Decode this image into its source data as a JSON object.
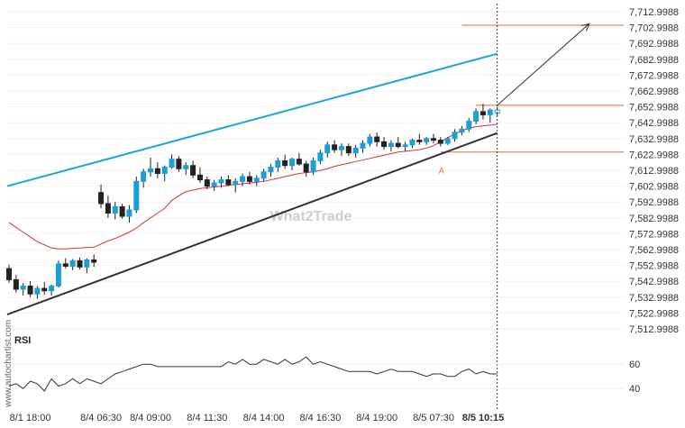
{
  "watermark": "What2Trade",
  "credit": "www.autochartist.com",
  "chart_data": {
    "type": "candlestick",
    "y_ticks": [
      "7,712.9988",
      "7,702.9988",
      "7,692.9988",
      "7,682.9988",
      "7,672.9988",
      "7,662.9988",
      "7,652.9988",
      "7,642.9988",
      "7,632.9988",
      "7,622.9988",
      "7,612.9988",
      "7,602.9988",
      "7,592.9988",
      "7,582.9988",
      "7,572.9988",
      "7,562.9988",
      "7,552.9988",
      "7,542.9988",
      "7,532.9988",
      "7,522.9988",
      "7,512.9988"
    ],
    "ylim": [
      7508.9988,
      7716.9988
    ],
    "x_labels": [
      "8/1 18:00",
      "8/4 06:30",
      "8/4 09:00",
      "8/4 11:30",
      "8/4 14:00",
      "8/4 16:30",
      "8/4 19:00",
      "8/5 07:30",
      "8/5 10:15"
    ],
    "x_label_index": [
      3,
      13,
      20,
      28,
      36,
      44,
      52,
      60,
      67
    ],
    "current_label": "8/5 10:15",
    "bar_count": 70,
    "candles": [
      {
        "o": 7551.0,
        "h": 7553.5,
        "l": 7542.0,
        "c": 7544.0
      },
      {
        "o": 7544.0,
        "h": 7547.0,
        "l": 7536.0,
        "c": 7538.0
      },
      {
        "o": 7538.0,
        "h": 7542.0,
        "l": 7534.0,
        "c": 7540.0
      },
      {
        "o": 7540.0,
        "h": 7543.0,
        "l": 7533.0,
        "c": 7535.0
      },
      {
        "o": 7535.0,
        "h": 7540.0,
        "l": 7532.0,
        "c": 7538.5
      },
      {
        "o": 7538.5,
        "h": 7542.5,
        "l": 7534.5,
        "c": 7537.0
      },
      {
        "o": 7537.0,
        "h": 7541.0,
        "l": 7534.0,
        "c": 7540.0
      },
      {
        "o": 7540.0,
        "h": 7556.0,
        "l": 7539.0,
        "c": 7554.0
      },
      {
        "o": 7554.0,
        "h": 7557.5,
        "l": 7551.0,
        "c": 7552.5
      },
      {
        "o": 7552.5,
        "h": 7557.0,
        "l": 7550.0,
        "c": 7556.0
      },
      {
        "o": 7556.0,
        "h": 7558.0,
        "l": 7550.5,
        "c": 7552.0
      },
      {
        "o": 7552.0,
        "h": 7557.5,
        "l": 7548.0,
        "c": 7556.5
      },
      {
        "o": 7556.5,
        "h": 7560.0,
        "l": 7552.0,
        "c": 7555.0
      },
      {
        "o": 7599.0,
        "h": 7604.0,
        "l": 7589.0,
        "c": 7592.0
      },
      {
        "o": 7592.0,
        "h": 7597.0,
        "l": 7583.0,
        "c": 7586.0
      },
      {
        "o": 7586.0,
        "h": 7593.0,
        "l": 7582.0,
        "c": 7590.0
      },
      {
        "o": 7590.0,
        "h": 7592.0,
        "l": 7582.5,
        "c": 7584.0
      },
      {
        "o": 7584.0,
        "h": 7591.0,
        "l": 7580.0,
        "c": 7588.0
      },
      {
        "o": 7588.0,
        "h": 7609.0,
        "l": 7586.0,
        "c": 7606.0
      },
      {
        "o": 7606.0,
        "h": 7614.0,
        "l": 7602.0,
        "c": 7612.0
      },
      {
        "o": 7612.0,
        "h": 7621.0,
        "l": 7609.0,
        "c": 7614.0
      },
      {
        "o": 7614.0,
        "h": 7618.0,
        "l": 7608.0,
        "c": 7611.0
      },
      {
        "o": 7611.0,
        "h": 7616.0,
        "l": 7606.0,
        "c": 7615.0
      },
      {
        "o": 7615.0,
        "h": 7623.0,
        "l": 7614.0,
        "c": 7620.0
      },
      {
        "o": 7620.0,
        "h": 7622.0,
        "l": 7612.0,
        "c": 7614.0
      },
      {
        "o": 7614.0,
        "h": 7618.0,
        "l": 7610.0,
        "c": 7616.0
      },
      {
        "o": 7616.0,
        "h": 7619.0,
        "l": 7608.0,
        "c": 7610.0
      },
      {
        "o": 7610.0,
        "h": 7615.0,
        "l": 7605.0,
        "c": 7607.0
      },
      {
        "o": 7607.0,
        "h": 7609.0,
        "l": 7601.0,
        "c": 7603.0
      },
      {
        "o": 7603.0,
        "h": 7607.0,
        "l": 7600.0,
        "c": 7605.0
      },
      {
        "o": 7605.0,
        "h": 7609.0,
        "l": 7602.0,
        "c": 7607.0
      },
      {
        "o": 7607.0,
        "h": 7610.0,
        "l": 7603.0,
        "c": 7604.0
      },
      {
        "o": 7604.0,
        "h": 7608.0,
        "l": 7599.0,
        "c": 7606.0
      },
      {
        "o": 7606.0,
        "h": 7611.0,
        "l": 7603.0,
        "c": 7609.0
      },
      {
        "o": 7609.0,
        "h": 7612.0,
        "l": 7604.0,
        "c": 7606.0
      },
      {
        "o": 7606.0,
        "h": 7610.0,
        "l": 7603.0,
        "c": 7608.0
      },
      {
        "o": 7608.0,
        "h": 7614.0,
        "l": 7606.0,
        "c": 7612.0
      },
      {
        "o": 7612.0,
        "h": 7617.0,
        "l": 7609.0,
        "c": 7615.0
      },
      {
        "o": 7615.0,
        "h": 7621.0,
        "l": 7612.0,
        "c": 7619.0
      },
      {
        "o": 7619.0,
        "h": 7623.0,
        "l": 7614.0,
        "c": 7616.0
      },
      {
        "o": 7616.0,
        "h": 7621.0,
        "l": 7613.0,
        "c": 7620.0
      },
      {
        "o": 7620.0,
        "h": 7624.0,
        "l": 7616.0,
        "c": 7617.0
      },
      {
        "o": 7617.0,
        "h": 7619.0,
        "l": 7609.0,
        "c": 7612.0
      },
      {
        "o": 7612.0,
        "h": 7621.0,
        "l": 7610.0,
        "c": 7619.0
      },
      {
        "o": 7619.0,
        "h": 7626.0,
        "l": 7617.0,
        "c": 7624.0
      },
      {
        "o": 7624.0,
        "h": 7631.0,
        "l": 7621.0,
        "c": 7629.0
      },
      {
        "o": 7629.0,
        "h": 7632.0,
        "l": 7624.0,
        "c": 7626.0
      },
      {
        "o": 7626.0,
        "h": 7630.0,
        "l": 7622.0,
        "c": 7628.0
      },
      {
        "o": 7628.0,
        "h": 7630.0,
        "l": 7622.0,
        "c": 7624.0
      },
      {
        "o": 7624.0,
        "h": 7629.0,
        "l": 7621.0,
        "c": 7627.0
      },
      {
        "o": 7627.0,
        "h": 7632.0,
        "l": 7624.0,
        "c": 7630.0
      },
      {
        "o": 7630.0,
        "h": 7636.0,
        "l": 7628.0,
        "c": 7634.0
      },
      {
        "o": 7634.0,
        "h": 7637.0,
        "l": 7628.0,
        "c": 7631.0
      },
      {
        "o": 7631.0,
        "h": 7634.0,
        "l": 7626.0,
        "c": 7628.0
      },
      {
        "o": 7628.0,
        "h": 7632.0,
        "l": 7625.0,
        "c": 7630.0
      },
      {
        "o": 7630.0,
        "h": 7634.0,
        "l": 7627.0,
        "c": 7628.0
      },
      {
        "o": 7628.0,
        "h": 7631.0,
        "l": 7625.0,
        "c": 7629.0
      },
      {
        "o": 7629.0,
        "h": 7633.0,
        "l": 7627.0,
        "c": 7632.0
      },
      {
        "o": 7632.0,
        "h": 7636.0,
        "l": 7629.0,
        "c": 7631.0
      },
      {
        "o": 7631.0,
        "h": 7634.0,
        "l": 7629.0,
        "c": 7633.0
      },
      {
        "o": 7633.0,
        "h": 7636.0,
        "l": 7630.0,
        "c": 7632.0
      },
      {
        "o": 7632.0,
        "h": 7634.0,
        "l": 7628.0,
        "c": 7630.0
      },
      {
        "o": 7630.0,
        "h": 7634.0,
        "l": 7629.0,
        "c": 7633.0
      },
      {
        "o": 7633.0,
        "h": 7639.0,
        "l": 7631.0,
        "c": 7637.0
      },
      {
        "o": 7637.0,
        "h": 7641.0,
        "l": 7635.0,
        "c": 7639.0
      },
      {
        "o": 7639.0,
        "h": 7646.0,
        "l": 7637.0,
        "c": 7644.0
      },
      {
        "o": 7644.0,
        "h": 7652.0,
        "l": 7642.0,
        "c": 7650.0
      },
      {
        "o": 7650.0,
        "h": 7655.0,
        "l": 7645.0,
        "c": 7648.0
      },
      {
        "o": 7648.0,
        "h": 7652.0,
        "l": 7643.0,
        "c": 7651.0
      },
      {
        "o": 7651.0,
        "h": 7653.0,
        "l": 7647.0,
        "c": 7649.0
      }
    ],
    "ma_color": "#e03030",
    "ma": [
      7580.0,
      7577.0,
      7574.0,
      7571.0,
      7568.0,
      7566.0,
      7564.0,
      7563.5,
      7563.5,
      7563.8,
      7564.0,
      7564.3,
      7564.5,
      7566.5,
      7568.5,
      7570.0,
      7572.0,
      7574.0,
      7576.5,
      7580.0,
      7583.0,
      7586.0,
      7589.0,
      7594.0,
      7597.0,
      7599.5,
      7600.5,
      7601.5,
      7602.0,
      7602.5,
      7603.0,
      7603.5,
      7604.0,
      7604.5,
      7605.0,
      7605.5,
      7606.0,
      7607.0,
      7608.0,
      7609.0,
      7610.0,
      7611.0,
      7611.5,
      7612.0,
      7613.0,
      7614.0,
      7615.5,
      7616.5,
      7617.5,
      7618.5,
      7619.5,
      7620.5,
      7621.5,
      7622.5,
      7623.5,
      7624.5,
      7625.0,
      7625.5,
      7626.0,
      7627.0,
      7628.5,
      7631.0,
      7633.5,
      7636.0,
      7638.0,
      7639.5,
      7640.5,
      7641.0,
      7641.5,
      7642.0
    ],
    "channel_upper": {
      "from_index": 0,
      "from": 7603.0,
      "to_index": 69,
      "to": 7686.5,
      "color": "#1ea5d9"
    },
    "channel_lower": {
      "from_index": 0,
      "from": 7522.0,
      "to_index": 69,
      "to": 7636.5,
      "color": "#333333"
    },
    "level_lines": [
      {
        "value": 7704.5,
        "color": "#e07020",
        "from_index": 64
      },
      {
        "value": 7654.0,
        "color": "#e07020",
        "from_index": 66
      },
      {
        "value": 7624.5,
        "color": "#e07020",
        "from_index": 61
      }
    ],
    "projection_arrow": {
      "from_index": 69,
      "from": 7654.0,
      "to_index": 81,
      "to": 7705.5,
      "color": "#333333"
    },
    "anchor_label": "A",
    "anchor_index": 61,
    "anchor_value": 7619.0,
    "current_line_index": 69,
    "rsi": {
      "title": "RSI",
      "ticks": [
        60,
        40
      ],
      "ylim": [
        32,
        72
      ],
      "values": [
        42,
        44,
        40,
        46,
        44,
        38,
        48,
        42,
        44,
        48,
        44,
        48,
        46,
        44,
        48,
        52,
        54,
        56,
        58,
        60,
        60,
        58,
        58,
        58,
        58,
        58,
        58,
        58,
        58,
        58,
        58,
        62,
        60,
        64,
        60,
        60,
        64,
        62,
        60,
        64,
        60,
        62,
        66,
        60,
        62,
        60,
        58,
        56,
        54,
        54,
        54,
        54,
        52,
        54,
        56,
        54,
        54,
        54,
        52,
        50,
        52,
        52,
        50,
        50,
        54,
        56,
        52,
        54,
        52,
        52
      ]
    }
  }
}
